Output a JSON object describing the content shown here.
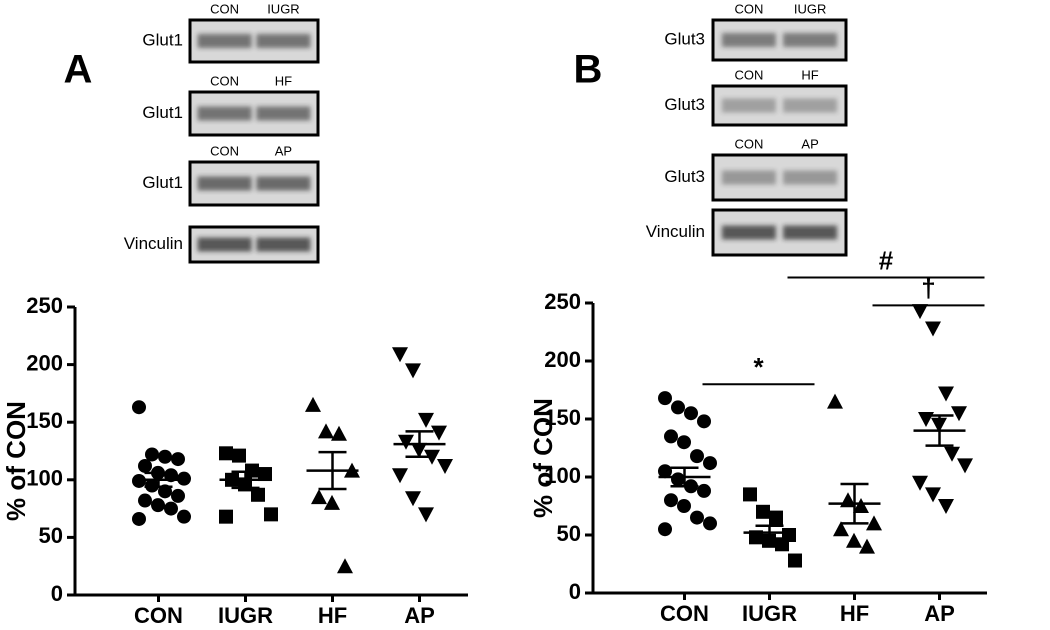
{
  "chart_data": [
    {
      "type": "scatter",
      "panel_label": "A",
      "y_label": "% of CON",
      "categories": [
        "CON",
        "IUGR",
        "HF",
        "AP"
      ],
      "markers": [
        "circle",
        "square",
        "triangle",
        "triangle-down"
      ],
      "color": "#000000",
      "values": [
        [
          163,
          122,
          120,
          118,
          112,
          106,
          104,
          101,
          99,
          95,
          90,
          86,
          82,
          78,
          75,
          68,
          66
        ],
        [
          123,
          121,
          108,
          105,
          100,
          96,
          87,
          70,
          68
        ],
        [
          165,
          142,
          140,
          108,
          85,
          80,
          25
        ],
        [
          209,
          195,
          152,
          141,
          133,
          126,
          120,
          112,
          104,
          84,
          70
        ]
      ],
      "means": [
        100,
        100,
        108,
        131
      ],
      "sem": [
        6,
        7,
        16,
        11
      ],
      "ylim": [
        0,
        250
      ],
      "yticks": [
        0,
        50,
        100,
        150,
        200,
        250
      ],
      "blots": [
        {
          "label": "Glut1",
          "lanes": [
            "CON",
            "IUGR"
          ]
        },
        {
          "label": "Glut1",
          "lanes": [
            "CON",
            "HF"
          ]
        },
        {
          "label": "Glut1",
          "lanes": [
            "CON",
            "AP"
          ]
        },
        {
          "label": "Vinculin"
        }
      ],
      "annotations": []
    },
    {
      "type": "scatter",
      "panel_label": "B",
      "y_label": "% of CON",
      "categories": [
        "CON",
        "IUGR",
        "HF",
        "AP"
      ],
      "markers": [
        "circle",
        "square",
        "triangle",
        "triangle-down"
      ],
      "color": "#000000",
      "values": [
        [
          168,
          160,
          155,
          148,
          135,
          130,
          118,
          112,
          105,
          98,
          92,
          88,
          80,
          75,
          65,
          60,
          55
        ],
        [
          85,
          70,
          65,
          50,
          48,
          45,
          42,
          28
        ],
        [
          165,
          80,
          75,
          60,
          55,
          45,
          40
        ],
        [
          243,
          228,
          172,
          155,
          150,
          145,
          120,
          110,
          95,
          85,
          75
        ]
      ],
      "means": [
        100,
        52,
        77,
        140
      ],
      "sem": [
        8,
        6,
        17,
        13
      ],
      "ylim": [
        0,
        250
      ],
      "yticks": [
        0,
        50,
        100,
        150,
        200,
        250
      ],
      "blots": [
        {
          "label": "Glut3",
          "lanes": [
            "CON",
            "IUGR"
          ]
        },
        {
          "label": "Glut3",
          "lanes": [
            "CON",
            "HF"
          ]
        },
        {
          "label": "Glut3",
          "lanes": [
            "CON",
            "AP"
          ]
        },
        {
          "label": "Vinculin"
        }
      ],
      "annotations": [
        {
          "text": "*",
          "between": [
            "CON",
            "IUGR"
          ],
          "y": 180
        },
        {
          "text": "#",
          "between": [
            "IUGR",
            "AP"
          ],
          "y": 272
        },
        {
          "text": "†",
          "between": [
            "HF",
            "AP"
          ],
          "y": 248
        }
      ]
    }
  ]
}
